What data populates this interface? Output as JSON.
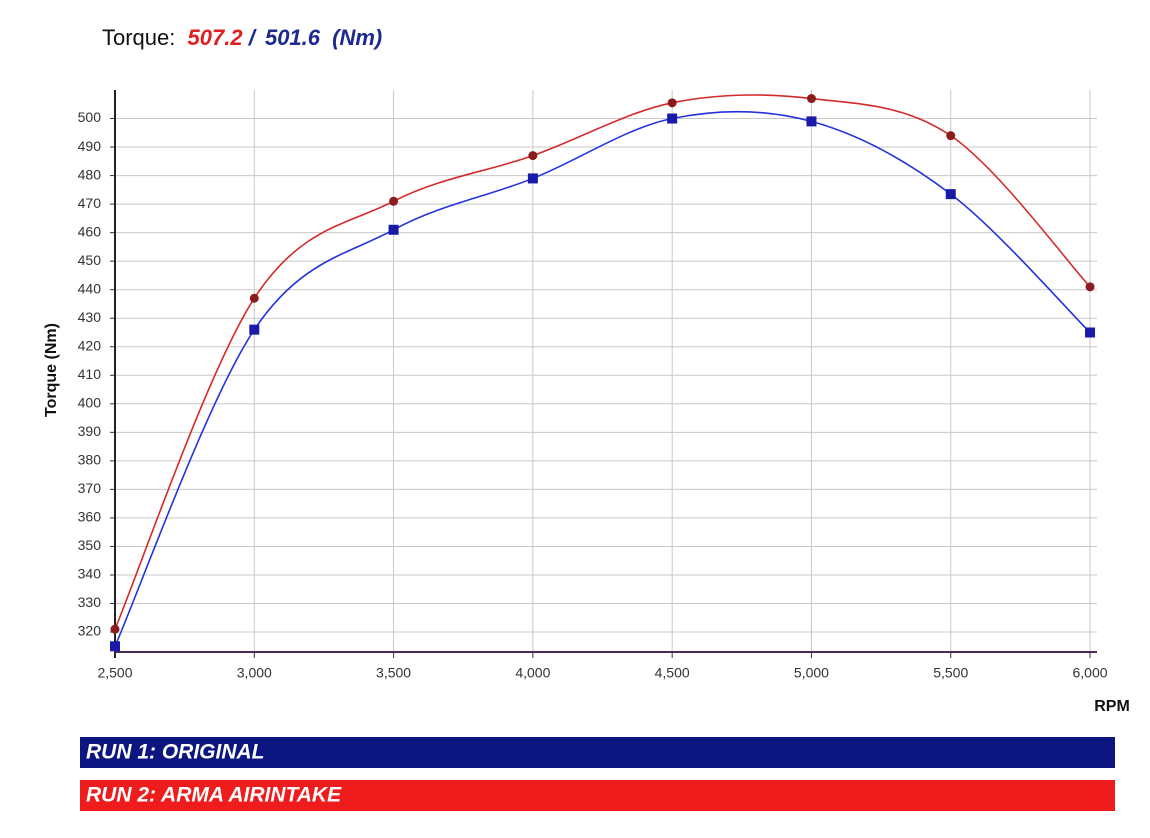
{
  "chart_data": {
    "type": "line",
    "title": {
      "label": "Torque:",
      "value_a": "507.2",
      "separator": "/",
      "value_b": "501.6",
      "unit": "(Nm)"
    },
    "x_label": "RPM",
    "y_label": "Torque (Nm)",
    "x": [
      2500,
      3000,
      3500,
      4000,
      4500,
      5000,
      5500,
      6000
    ],
    "series": [
      {
        "name": "RUN 1: ORIGINAL",
        "color": "#2233dd",
        "marker_color": "#1a1aa8",
        "marker": "square",
        "legend_color": "#0c1580",
        "values": [
          315,
          426,
          461,
          479,
          500,
          499,
          473.5,
          425
        ]
      },
      {
        "name": "RUN 2: ARMA AIRINTAKE",
        "color": "#d42a2a",
        "marker_color": "#8c1c1c",
        "marker": "circle",
        "legend_color": "#ee1c1c",
        "values": [
          321,
          437,
          471,
          487,
          505.5,
          507,
          494,
          441
        ]
      }
    ],
    "xlim": [
      2500,
      6025
    ],
    "xticks": [
      {
        "value": 2500,
        "label": "2,500"
      },
      {
        "value": 3000,
        "label": "3,000"
      },
      {
        "value": 3500,
        "label": "3,500"
      },
      {
        "value": 4000,
        "label": "4,000"
      },
      {
        "value": 4500,
        "label": "4,500"
      },
      {
        "value": 5000,
        "label": "5,000"
      },
      {
        "value": 5500,
        "label": "5,500"
      },
      {
        "value": 6000,
        "label": "6,000"
      }
    ],
    "ylim": [
      313,
      510
    ],
    "yticks": [
      320,
      330,
      340,
      350,
      360,
      370,
      380,
      390,
      400,
      410,
      420,
      430,
      440,
      450,
      460,
      470,
      480,
      490,
      500
    ],
    "grid": true,
    "smooth": true
  }
}
